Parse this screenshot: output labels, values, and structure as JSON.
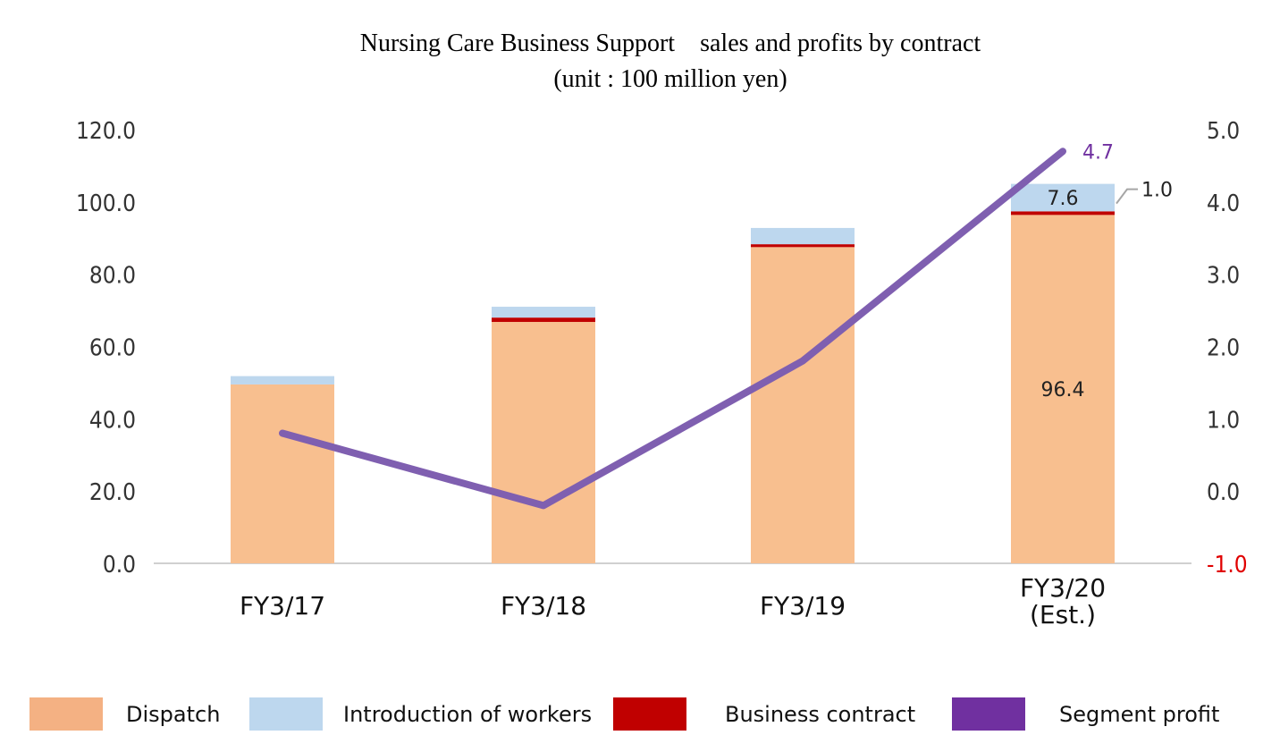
{
  "chart_data": {
    "type": "bar",
    "stacked": true,
    "title": "Nursing Care Business Support　sales and profits by contract",
    "subtitle": "(unit : 100 million yen)",
    "categories": [
      [
        "FY3/17"
      ],
      [
        "FY3/18"
      ],
      [
        "FY3/19"
      ],
      [
        "FY3/20",
        "(Est.)"
      ]
    ],
    "series": [
      {
        "name": "Dispatch",
        "kind": "bar",
        "axis": "left",
        "color": "#f8bf8f",
        "values": [
          49.5,
          66.8,
          87.5,
          96.4
        ]
      },
      {
        "name": "Business contract",
        "kind": "bar",
        "axis": "left",
        "color": "#c00000",
        "values": [
          0.0,
          1.2,
          0.8,
          1.0
        ]
      },
      {
        "name": "Introduction of workers",
        "kind": "bar",
        "axis": "left",
        "color": "#bdd7ee",
        "values": [
          2.3,
          3.0,
          4.5,
          7.6
        ]
      },
      {
        "name": "Segment profit",
        "kind": "line",
        "axis": "right",
        "color": "#7f5fb0",
        "values": [
          0.8,
          -0.2,
          1.8,
          4.7
        ]
      }
    ],
    "y_left": {
      "ylim": [
        0,
        120
      ],
      "ticks": [
        "0.0",
        "20.0",
        "40.0",
        "60.0",
        "80.0",
        "100.0",
        "120.0"
      ]
    },
    "y_right": {
      "ylim": [
        -1,
        5
      ],
      "ticks": [
        "-1.0",
        "0.0",
        "1.0",
        "2.0",
        "3.0",
        "4.0",
        "5.0"
      ],
      "negative_color": "#e00000"
    },
    "data_labels": {
      "dispatch_last": "96.4",
      "intro_last": "7.6",
      "contract_last": "1.0",
      "profit_last": "4.7"
    },
    "grid": false,
    "legend_position": "bottom",
    "legend": [
      {
        "label": "Dispatch",
        "color": "#f4b183"
      },
      {
        "label": "Introduction of workers",
        "color": "#bdd7ee"
      },
      {
        "label": "Business contract",
        "color": "#c00000"
      },
      {
        "label": "Segment profit",
        "color": "#7030a0"
      }
    ]
  }
}
